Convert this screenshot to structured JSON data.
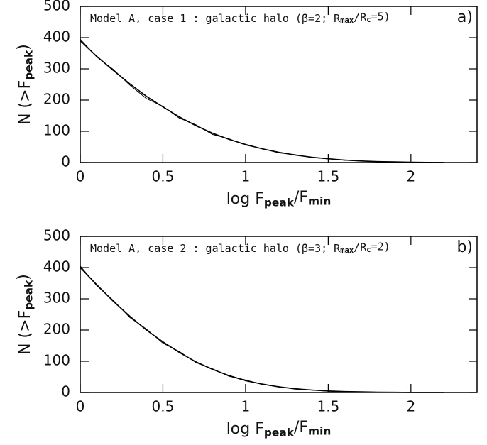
{
  "chart_data": [
    {
      "type": "line",
      "panel_label": "a)",
      "annotation": [
        "Model A, case 1 : galactic halo (β=2; R",
        "max",
        "/R",
        "c",
        "=5)"
      ],
      "xlabel": [
        "log F",
        "peak",
        "/F",
        "min"
      ],
      "ylabel": [
        "N (>F",
        "peak",
        ")"
      ],
      "x": [
        0,
        0.1,
        0.2,
        0.3,
        0.4,
        0.5,
        0.6,
        0.7,
        0.8,
        0.9,
        1,
        1.1,
        1.2,
        1.3,
        1.4,
        1.5,
        1.6,
        1.7,
        1.8,
        1.9,
        2,
        2.1,
        2.2
      ],
      "series": [
        {
          "color": "#000000",
          "values": [
            390,
            340,
            295,
            252,
            212,
            178,
            146,
            118,
            94,
            74,
            58,
            44,
            33,
            24,
            17,
            12,
            8,
            5,
            3,
            2,
            1,
            0.5,
            0.3
          ]
        },
        {
          "color": "#000000",
          "values": [
            395,
            338,
            298,
            248,
            205,
            180,
            142,
            121,
            90,
            76,
            56,
            45,
            31,
            25,
            16,
            12,
            7,
            5,
            3,
            1,
            1,
            0,
            0
          ]
        }
      ],
      "xlim": [
        0,
        2.4
      ],
      "xticks": [
        0,
        0.5,
        1,
        1.5,
        2
      ],
      "ylim": [
        0,
        500
      ],
      "yticks": [
        0,
        100,
        200,
        300,
        400,
        500
      ]
    },
    {
      "type": "line",
      "panel_label": "b)",
      "annotation": [
        "Model A, case 2 : galactic halo (β=3; R",
        "max",
        "/R",
        "c",
        "=2)"
      ],
      "xlabel": [
        "log F",
        "peak",
        "/F",
        "min"
      ],
      "ylabel": [
        "N (>F",
        "peak",
        ")"
      ],
      "x": [
        0,
        0.1,
        0.2,
        0.3,
        0.4,
        0.5,
        0.6,
        0.7,
        0.8,
        0.9,
        1,
        1.1,
        1.2,
        1.3,
        1.4,
        1.5,
        1.6,
        1.7,
        1.8,
        1.9,
        2,
        2.1,
        2.2
      ],
      "series": [
        {
          "color": "#000000",
          "values": [
            400,
            345,
            292,
            244,
            200,
            162,
            128,
            98,
            74,
            54,
            38,
            27,
            18,
            12,
            8,
            5,
            3,
            2,
            1,
            0.6,
            0.3,
            0.1,
            0
          ]
        },
        {
          "color": "#000000",
          "values": [
            405,
            342,
            295,
            240,
            203,
            158,
            131,
            96,
            76,
            52,
            40,
            26,
            19,
            11,
            8,
            4,
            3,
            2,
            1,
            0,
            0,
            0,
            0
          ]
        }
      ],
      "xlim": [
        0,
        2.4
      ],
      "xticks": [
        0,
        0.5,
        1,
        1.5,
        2
      ],
      "ylim": [
        0,
        500
      ],
      "yticks": [
        0,
        100,
        200,
        300,
        400,
        500
      ]
    }
  ]
}
